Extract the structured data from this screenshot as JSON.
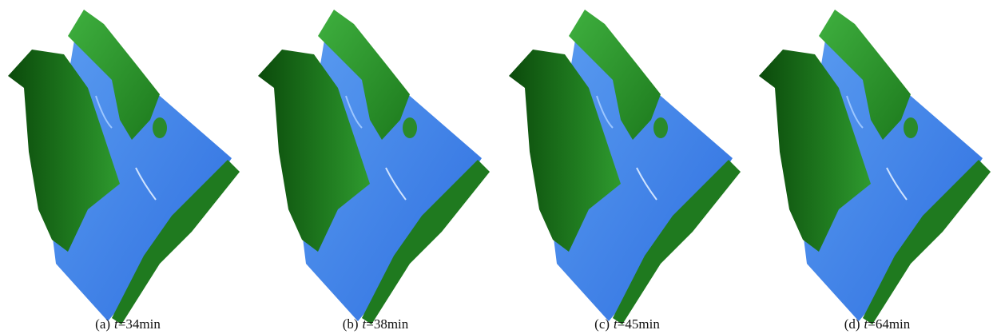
{
  "panels": [
    {
      "label": "(a)",
      "variable": "t",
      "value": "=34min"
    },
    {
      "label": "(b)",
      "variable": "t",
      "value": "=38min"
    },
    {
      "label": "(c)",
      "variable": "t",
      "value": "=45min"
    },
    {
      "label": "(d)",
      "variable": "t",
      "value": "=64min"
    }
  ]
}
